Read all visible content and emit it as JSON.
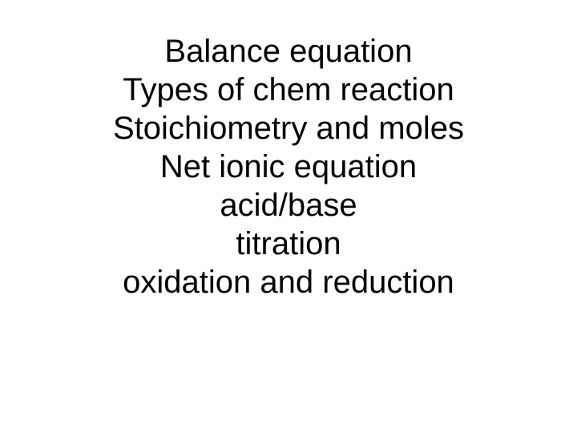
{
  "slide": {
    "lines": [
      "Balance equation",
      "Types of chem reaction",
      "Stoichiometry and moles",
      "Net ionic equation",
      "acid/base",
      "titration",
      "oxidation and reduction"
    ],
    "font_size": 40,
    "font_family": "Arial",
    "text_color": "#000000",
    "background_color": "#ffffff",
    "text_align": "center",
    "line_height": 1.2
  }
}
